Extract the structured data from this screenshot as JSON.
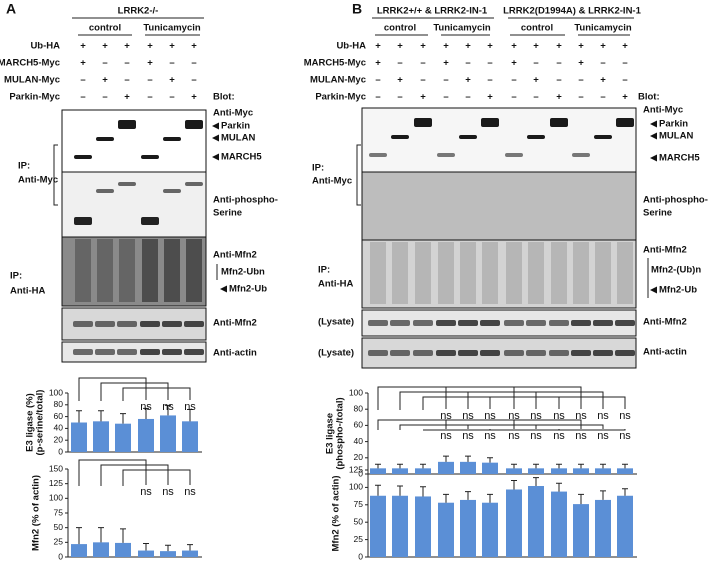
{
  "panels": [
    {
      "label": "A",
      "header": {
        "titles": [
          "LRRK2-/-"
        ],
        "groups": [
          "control",
          "Tunicamycin"
        ]
      },
      "conditions": [
        {
          "label": "Ub-HA",
          "signs": [
            "+",
            "+",
            "+",
            "+",
            "+",
            "+"
          ]
        },
        {
          "label": "MARCH5-Myc",
          "signs": [
            "+",
            "–",
            "–",
            "+",
            "–",
            "–"
          ]
        },
        {
          "label": "MULAN-Myc",
          "signs": [
            "–",
            "+",
            "–",
            "–",
            "+",
            "–"
          ]
        },
        {
          "label": "Parkin-Myc",
          "signs": [
            "–",
            "–",
            "+",
            "–",
            "–",
            "+"
          ]
        }
      ],
      "blot_header": "Blot:",
      "blot_labels": [
        "Anti-Myc",
        "Parkin",
        "MULAN",
        "MARCH5",
        "Anti-phospho-",
        "Serine",
        "Anti-Mfn2",
        "Mfn2-Ubn",
        "Mfn2-Ub",
        "Anti-Mfn2",
        "Anti-actin"
      ],
      "left_labels": [
        "IP:",
        "Anti-Myc",
        "IP:",
        "Anti-HA"
      ]
    },
    {
      "label": "B",
      "header": {
        "titles": [
          "LRRK2+/+ & LRRK2-IN-1",
          "LRRK2(D1994A) & LRRK2-IN-1"
        ],
        "groups": [
          "control",
          "Tunicamycin",
          "control",
          "Tunicamycin"
        ]
      },
      "conditions": [
        {
          "label": "Ub-HA",
          "signs": [
            "+",
            "+",
            "+",
            "+",
            "+",
            "+",
            "+",
            "+",
            "+",
            "+",
            "+",
            "+"
          ]
        },
        {
          "label": "MARCH5-Myc",
          "signs": [
            "+",
            "–",
            "–",
            "+",
            "–",
            "–",
            "+",
            "–",
            "–",
            "+",
            "–",
            "–"
          ]
        },
        {
          "label": "MULAN-Myc",
          "signs": [
            "–",
            "+",
            "–",
            "–",
            "+",
            "–",
            "–",
            "+",
            "–",
            "–",
            "+",
            "–"
          ]
        },
        {
          "label": "Parkin-Myc",
          "signs": [
            "–",
            "–",
            "+",
            "–",
            "–",
            "+",
            "–",
            "–",
            "+",
            "–",
            "–",
            "+"
          ]
        }
      ],
      "blot_header": "Blot:",
      "blot_labels": [
        "Anti-Myc",
        "Parkin",
        "MULAN",
        "MARCH5",
        "Anti-phospho-",
        "Serine",
        "Anti-Mfn2",
        "Mfn2-(Ub)n",
        "Mfn2-Ub",
        "Anti-Mfn2",
        "Anti-actin"
      ],
      "left_labels": [
        "IP:",
        "Anti-Myc",
        "IP:",
        "Anti-HA",
        "(Lysate)",
        "(Lysate)"
      ]
    }
  ],
  "chart_data": [
    {
      "type": "bar",
      "ylabel": [
        "E3 ligase (%)",
        "(p-serine/total)"
      ],
      "color": "#5b8fd6",
      "values": [
        50,
        52,
        48,
        56,
        62,
        52
      ],
      "errors": [
        20,
        18,
        17,
        18,
        17,
        20
      ],
      "significance": [
        null,
        null,
        null,
        "ns",
        "ns",
        "ns"
      ],
      "ylim": [
        0,
        100
      ],
      "yticks": [
        0,
        20,
        40,
        60,
        80,
        100
      ]
    },
    {
      "type": "bar",
      "ylabel": [
        "Mfn2 (% of actin)"
      ],
      "color": "#5b8fd6",
      "values": [
        22,
        25,
        24,
        11,
        10,
        11
      ],
      "errors": [
        28,
        25,
        24,
        12,
        10,
        10
      ],
      "significance": [
        null,
        null,
        null,
        "ns",
        "ns",
        "ns"
      ],
      "ylim": [
        0,
        150
      ],
      "yticks": [
        0,
        25,
        50,
        75,
        100,
        125,
        150
      ]
    },
    {
      "type": "bar",
      "ylabel": [
        "E3 ligase",
        "(phospho-/total)"
      ],
      "color": "#5b8fd6",
      "values": [
        7,
        7,
        7,
        15,
        15,
        14,
        7,
        7,
        7,
        7,
        7,
        7
      ],
      "errors": [
        5,
        5,
        5,
        7,
        7,
        6,
        5,
        5,
        5,
        5,
        5,
        5
      ],
      "significance": [
        null,
        null,
        null,
        "ns",
        "ns",
        "ns",
        "ns",
        "ns",
        "ns",
        "ns",
        "ns",
        "ns"
      ],
      "ylim": [
        0,
        100
      ],
      "yticks": [
        0,
        20,
        40,
        60,
        80,
        100
      ]
    },
    {
      "type": "bar",
      "ylabel": [
        "Mfn2 (% of actin)"
      ],
      "color": "#5b8fd6",
      "values": [
        88,
        88,
        87,
        78,
        82,
        78,
        97,
        102,
        94,
        76,
        82,
        88
      ],
      "errors": [
        15,
        14,
        14,
        12,
        12,
        12,
        13,
        12,
        12,
        14,
        13,
        10
      ],
      "significance": [
        null,
        null,
        null,
        "ns",
        "ns",
        "ns",
        "ns",
        "ns",
        "ns",
        "ns",
        "ns",
        "ns"
      ],
      "ylim": [
        0,
        125
      ],
      "yticks": [
        0,
        25,
        50,
        75,
        100,
        125
      ]
    }
  ]
}
